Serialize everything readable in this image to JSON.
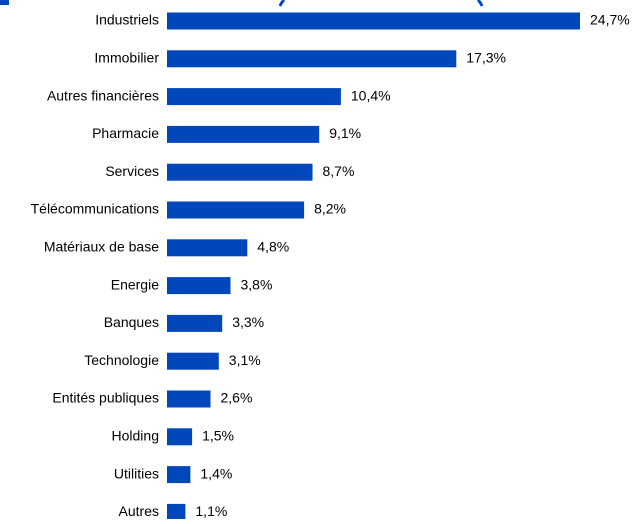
{
  "chart_data": {
    "type": "bar",
    "orientation": "horizontal",
    "categories": [
      "Industriels",
      "Immobilier",
      "Autres financières",
      "Pharmacie",
      "Services",
      "Télécommunications",
      "Matériaux de base",
      "Energie",
      "Banques",
      "Technologie",
      "Entités publiques",
      "Holding",
      "Utilities",
      "Autres"
    ],
    "values": [
      24.7,
      17.3,
      10.4,
      9.1,
      8.7,
      8.2,
      4.8,
      3.8,
      3.3,
      3.1,
      2.6,
      1.5,
      1.4,
      1.1
    ],
    "value_labels": [
      "24,7%",
      "17,3%",
      "10,4%",
      "9,1%",
      "8,7%",
      "8,2%",
      "4,8%",
      "3,8%",
      "3,3%",
      "3,1%",
      "2,6%",
      "1,5%",
      "1,4%",
      "1,1%"
    ],
    "xlim": [
      0,
      24.7
    ],
    "grid": false,
    "bar_color": "#0047BB",
    "title_color": "#0047BB"
  }
}
